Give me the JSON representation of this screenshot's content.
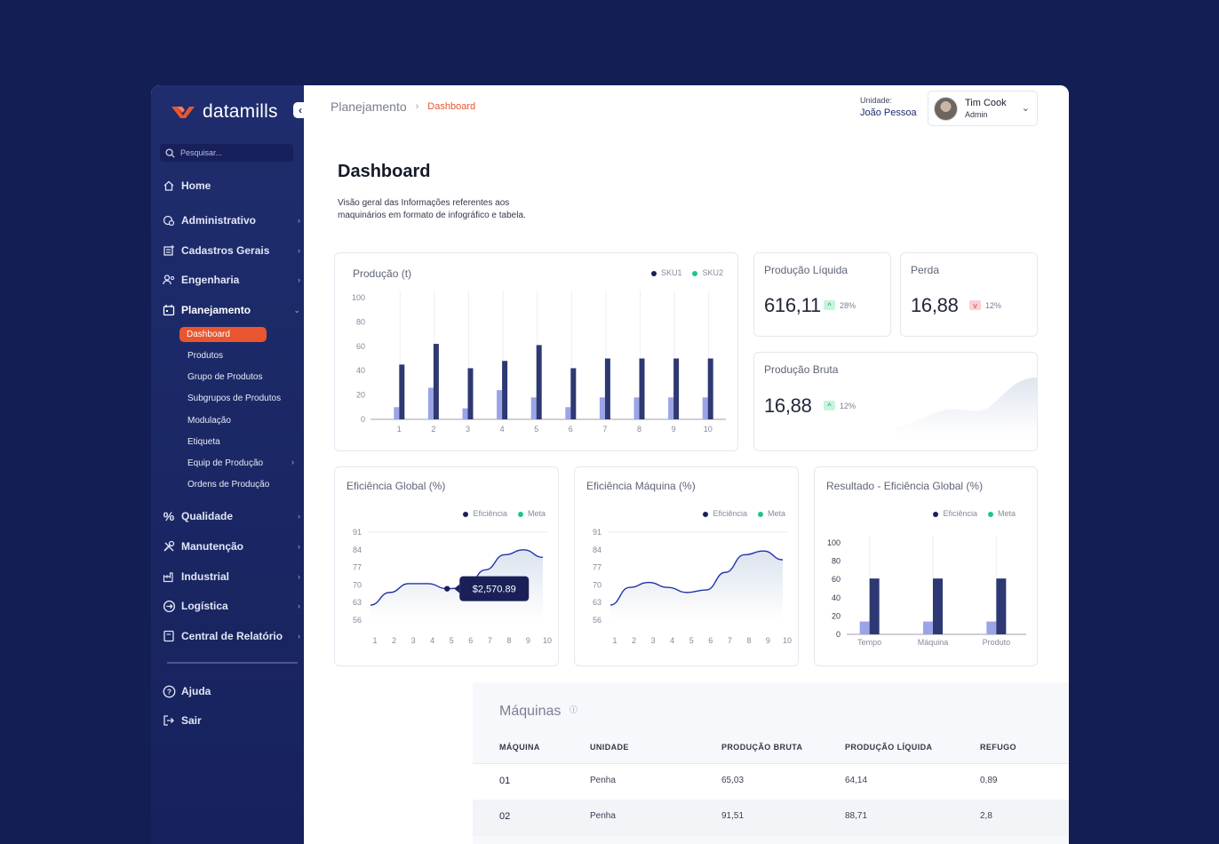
{
  "brand": {
    "name": "datamills",
    "accent": "#e8552e",
    "navy": "#1f2d6e"
  },
  "sidebar": {
    "search_placeholder": "Pesquisar...",
    "items": [
      {
        "label": "Home",
        "icon": "home-icon"
      },
      {
        "label": "Administrativo",
        "icon": "admin-icon"
      },
      {
        "label": "Cadastros Gerais",
        "icon": "register-icon"
      },
      {
        "label": "Engenharia",
        "icon": "engineering-icon"
      },
      {
        "label": "Planejamento",
        "icon": "planning-icon"
      },
      {
        "label": "Qualidade",
        "icon": "percent-icon"
      },
      {
        "label": "Manutenção",
        "icon": "tools-icon"
      },
      {
        "label": "Industrial",
        "icon": "factory-icon"
      },
      {
        "label": "Logística",
        "icon": "logistics-icon"
      },
      {
        "label": "Central de Relatório",
        "icon": "report-icon"
      }
    ],
    "subitems": [
      "Dashboard",
      "Produtos",
      "Grupo de Produtos",
      "Subgrupos de Produtos",
      "Modulação",
      "Etiqueta",
      "Equip de Produção",
      "Ordens de Produção"
    ],
    "footer": [
      {
        "label": "Ajuda",
        "icon": "help-icon"
      },
      {
        "label": "Sair",
        "icon": "logout-icon"
      }
    ]
  },
  "header": {
    "breadcrumb_root": "Planejamento",
    "breadcrumb_current": "Dashboard",
    "unit_label": "Unidade:",
    "unit_value": "João Pessoa",
    "user_name": "Tim Cook",
    "user_role": "Admin"
  },
  "page": {
    "title": "Dashboard",
    "description": "Visão geral das Informações referentes aos maquinários em formato de infográfico e tabela."
  },
  "kpis": {
    "liquida": {
      "title": "Produção Líquida",
      "value": "616,11",
      "change": "28%",
      "direction": "up"
    },
    "perda": {
      "title": "Perda",
      "value": "16,88",
      "change": "12%",
      "direction": "down"
    },
    "bruta": {
      "title": "Produção Bruta",
      "value": "16,88",
      "change": "12%",
      "direction": "up"
    }
  },
  "chart_data": [
    {
      "type": "bar",
      "title": "Produção (t)",
      "categories": [
        "1",
        "2",
        "3",
        "4",
        "5",
        "6",
        "7",
        "8",
        "9",
        "10"
      ],
      "ylim": [
        0,
        100
      ],
      "yticks": [
        0,
        20,
        40,
        60,
        80,
        100
      ],
      "series": [
        {
          "name": "SKU1",
          "color": "#2e3872",
          "values": [
            45,
            62,
            42,
            48,
            61,
            42,
            50,
            50,
            50,
            50
          ]
        },
        {
          "name": "SKU2",
          "color": "#9aa4e6",
          "values": [
            10,
            26,
            9,
            24,
            18,
            10,
            18,
            18,
            18,
            18
          ]
        }
      ],
      "legend_colors": [
        "#1a2057",
        "#1fc58a"
      ]
    },
    {
      "type": "area",
      "title": "Eficiência Global (%)",
      "x": [
        1,
        2,
        3,
        4,
        5,
        6,
        7,
        8,
        9,
        10
      ],
      "ylim": [
        56,
        91
      ],
      "yticks": [
        56,
        63,
        70,
        77,
        84,
        91
      ],
      "series": [
        {
          "name": "Eficiência",
          "values": [
            62,
            67,
            70.5,
            70.5,
            68.5,
            69,
            76,
            82,
            84,
            81
          ]
        }
      ],
      "legend": [
        "Eficiência",
        "Meta"
      ],
      "tooltip": {
        "x": 5,
        "label": "$2,570.89"
      }
    },
    {
      "type": "area",
      "title": "Eficiência Máquina (%)",
      "x": [
        1,
        2,
        3,
        4,
        5,
        6,
        7,
        8,
        9,
        10
      ],
      "ylim": [
        56,
        91
      ],
      "yticks": [
        56,
        63,
        70,
        77,
        84,
        91
      ],
      "series": [
        {
          "name": "Eficiência",
          "values": [
            62,
            69,
            71,
            69,
            67,
            68,
            75,
            82,
            83.5,
            80
          ]
        }
      ],
      "legend": [
        "Eficiência",
        "Meta"
      ]
    },
    {
      "type": "bar",
      "title": "Resultado - Eficiência Global (%)",
      "categories": [
        "Tempo",
        "Máquina",
        "Produto"
      ],
      "ylim": [
        0,
        100
      ],
      "yticks": [
        0,
        20,
        40,
        60,
        80,
        100
      ],
      "series": [
        {
          "name": "Eficiência",
          "color": "#2e3872",
          "values": [
            61,
            61,
            61
          ]
        },
        {
          "name": "Meta",
          "color": "#9aa4e6",
          "values": [
            14,
            14,
            14
          ]
        }
      ],
      "legend": [
        "Eficiência",
        "Meta"
      ]
    }
  ],
  "table": {
    "title": "Máquinas",
    "columns": [
      "MÁQUINA",
      "UNIDADE",
      "PRODUÇÃO BRUTA",
      "PRODUÇÃO LÍQUIDA",
      "REFUGO"
    ],
    "rows": [
      [
        "01",
        "Penha",
        "65,03",
        "64,14",
        "0,89"
      ],
      [
        "02",
        "Penha",
        "91,51",
        "88,71",
        "2,8"
      ]
    ]
  }
}
